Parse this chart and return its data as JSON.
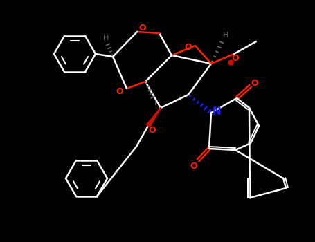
{
  "bg": "#000000",
  "bc": "#ffffff",
  "oc": "#ff2200",
  "nc": "#1a1aff",
  "sc": "#666666",
  "figsize": [
    4.55,
    3.5
  ],
  "dpi": 100,
  "xlim": [
    0,
    455
  ],
  "ylim": [
    0,
    350
  ]
}
